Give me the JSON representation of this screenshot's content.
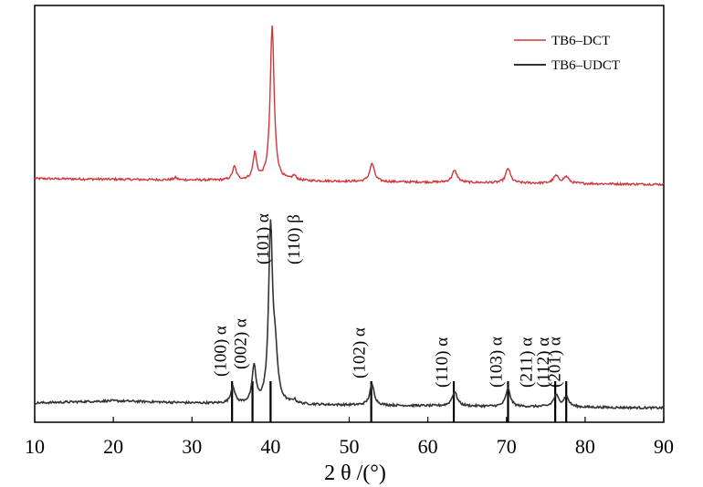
{
  "chart_data": {
    "type": "line",
    "xlabel": "2 θ /(°)",
    "xlim": [
      10,
      90
    ],
    "x_ticks": [
      "10",
      "20",
      "30",
      "40",
      "50",
      "60",
      "70",
      "80",
      "90"
    ],
    "y_visible": false,
    "grid": false,
    "legend_position": "top-right",
    "series": [
      {
        "name": "TB6–DCT",
        "color": "#d0363a",
        "baseline": [
          [
            10,
            0.04
          ],
          [
            20,
            0.03
          ],
          [
            30,
            0.02
          ],
          [
            40,
            0.01
          ],
          [
            50,
            0.0
          ],
          [
            60,
            -0.01
          ],
          [
            70,
            -0.02
          ],
          [
            80,
            -0.03
          ],
          [
            90,
            -0.04
          ]
        ],
        "peaks": [
          [
            27.9,
            0.03,
            0.25
          ],
          [
            35.4,
            0.18,
            0.3
          ],
          [
            38.0,
            0.36,
            0.28
          ],
          [
            40.2,
            2.12,
            0.3
          ],
          [
            43.0,
            0.06,
            0.3
          ],
          [
            52.9,
            0.25,
            0.35
          ],
          [
            63.4,
            0.16,
            0.4
          ],
          [
            70.2,
            0.2,
            0.35
          ],
          [
            76.3,
            0.1,
            0.4
          ],
          [
            77.6,
            0.09,
            0.4
          ]
        ]
      },
      {
        "name": "TB6–UDCT",
        "color": "#333333",
        "baseline": [
          [
            10,
            0.04
          ],
          [
            20,
            0.07
          ],
          [
            30,
            0.04
          ],
          [
            35,
            0.03
          ],
          [
            40,
            0.02
          ],
          [
            50,
            0.01
          ],
          [
            60,
            0.0
          ],
          [
            70,
            -0.01
          ],
          [
            80,
            -0.02
          ],
          [
            90,
            -0.03
          ]
        ],
        "peaks": [
          [
            35.2,
            0.24,
            0.3
          ],
          [
            37.9,
            0.52,
            0.28
          ],
          [
            40.0,
            2.45,
            0.3
          ],
          [
            40.6,
            0.6,
            0.35
          ],
          [
            43.0,
            0.05,
            0.3
          ],
          [
            52.9,
            0.29,
            0.35
          ],
          [
            63.4,
            0.2,
            0.4
          ],
          [
            70.2,
            0.25,
            0.35
          ],
          [
            76.3,
            0.16,
            0.4
          ],
          [
            77.6,
            0.14,
            0.4
          ]
        ]
      }
    ],
    "reference_lines": [
      {
        "x": 35.1,
        "label": "(100) α"
      },
      {
        "x": 37.7,
        "label": "(002) α"
      },
      {
        "x": 40.0,
        "label": "(101) α"
      },
      {
        "x": 52.8,
        "label": "(102) α"
      },
      {
        "x": 63.3,
        "label": "(110) α"
      },
      {
        "x": 70.2,
        "label": "(103) α"
      },
      {
        "x": 76.2,
        "label": "(112) α"
      },
      {
        "x": 77.6,
        "label": "(201) α"
      }
    ],
    "upper_annotations": [
      {
        "x": 40.5,
        "label": "(101) α"
      },
      {
        "x": 44.5,
        "label": "(110) β"
      }
    ],
    "extra_labels": [
      {
        "x": 74.0,
        "label": "(211) α"
      }
    ]
  }
}
